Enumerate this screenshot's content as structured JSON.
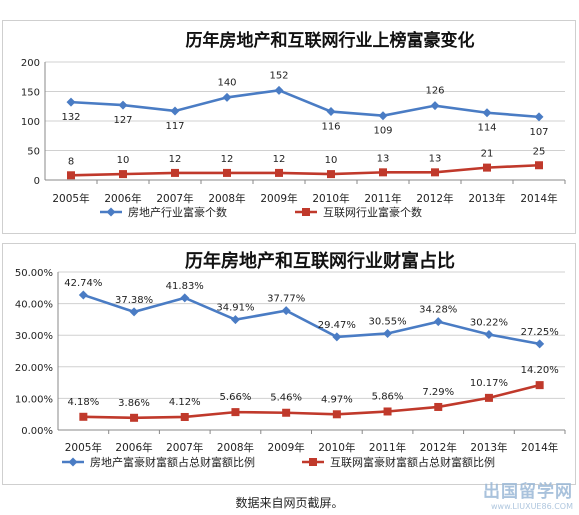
{
  "source_note": "数据来自网页截屏。",
  "watermark": {
    "text": "出国留学网",
    "url": "www.LIUXUE86.COM"
  },
  "colors": {
    "blue": "#4a7cc4",
    "red": "#c0392b",
    "grid": "#d0d0d0"
  },
  "chart_data": [
    {
      "type": "line",
      "title": "历年房地产和互联网行业上榜富豪变化",
      "categories": [
        "2005年",
        "2006年",
        "2007年",
        "2008年",
        "2009年",
        "2010年",
        "2011年",
        "2012年",
        "2013年",
        "2014年"
      ],
      "series": [
        {
          "name": "房地产行业富豪个数",
          "values": [
            132,
            127,
            117,
            140,
            152,
            116,
            109,
            126,
            114,
            107
          ],
          "labels": [
            "132",
            "127",
            "117",
            "140",
            "152",
            "116",
            "109",
            "126",
            "114",
            "107"
          ]
        },
        {
          "name": "互联网行业富豪个数",
          "values": [
            8,
            10,
            12,
            12,
            12,
            10,
            13,
            13,
            21,
            25
          ],
          "labels": [
            "8",
            "10",
            "12",
            "12",
            "12",
            "10",
            "13",
            "13",
            "21",
            "25"
          ]
        }
      ],
      "ylim": [
        0,
        200
      ],
      "yticks": [
        "0",
        "50",
        "100",
        "150",
        "200"
      ],
      "grid": true,
      "legend": "bottom"
    },
    {
      "type": "line",
      "title": "历年房地产和互联网行业财富占比",
      "categories": [
        "2005年",
        "2006年",
        "2007年",
        "2008年",
        "2009年",
        "2010年",
        "2011年",
        "2012年",
        "2013年",
        "2014年"
      ],
      "series": [
        {
          "name": "房地产富豪财富额占总财富额比例",
          "values": [
            42.74,
            37.38,
            41.83,
            34.91,
            37.77,
            29.47,
            30.55,
            34.28,
            30.22,
            27.25
          ],
          "labels": [
            "42.74%",
            "37.38%",
            "41.83%",
            "34.91%",
            "37.77%",
            "29.47%",
            "30.55%",
            "34.28%",
            "30.22%",
            "27.25%"
          ]
        },
        {
          "name": "互联网富豪财富额占总财富额比例",
          "values": [
            4.18,
            3.86,
            4.12,
            5.66,
            5.46,
            4.97,
            5.86,
            7.29,
            10.17,
            14.2
          ],
          "labels": [
            "4.18%",
            "3.86%",
            "4.12%",
            "5.66%",
            "5.46%",
            "4.97%",
            "5.86%",
            "7.29%",
            "10.17%",
            "14.20%"
          ]
        }
      ],
      "ylim": [
        0,
        50
      ],
      "yticks": [
        "0.00%",
        "10.00%",
        "20.00%",
        "30.00%",
        "40.00%",
        "50.00%"
      ],
      "grid": true,
      "legend": "bottom"
    }
  ]
}
